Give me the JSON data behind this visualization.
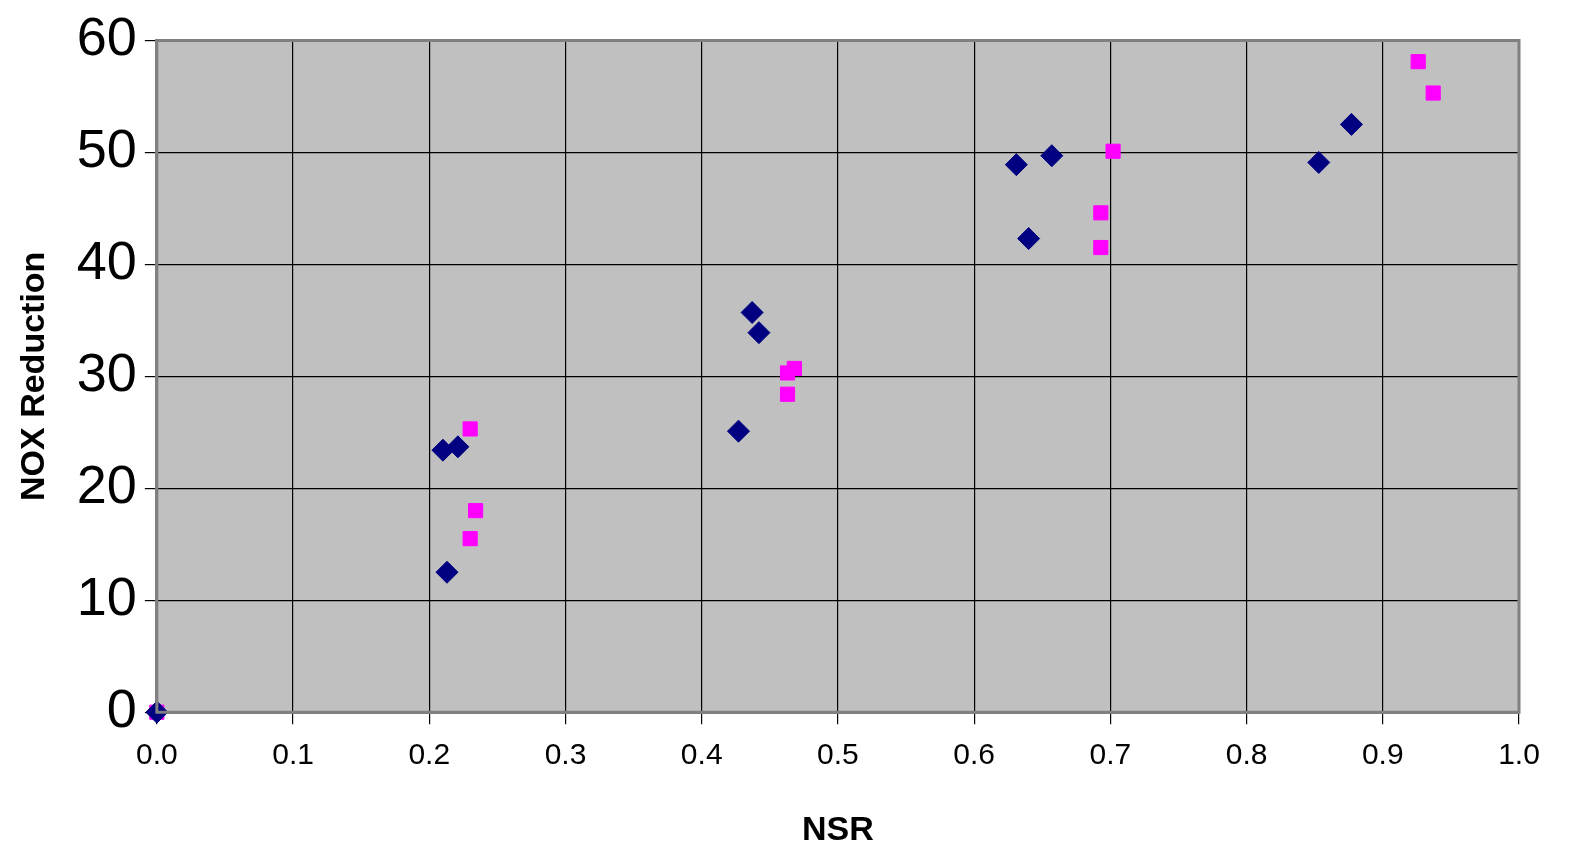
{
  "chart_data": {
    "type": "scatter",
    "xlabel": "NSR",
    "ylabel": "NOX Reduction",
    "xlim": [
      0,
      1
    ],
    "xticks": [
      {
        "value": 0,
        "label": "0.0"
      },
      {
        "value": 0.1,
        "label": "0.1"
      },
      {
        "value": 0.2,
        "label": "0.2"
      },
      {
        "value": 0.3,
        "label": "0.3"
      },
      {
        "value": 0.4,
        "label": "0.4"
      },
      {
        "value": 0.5,
        "label": "0.5"
      },
      {
        "value": 0.6,
        "label": "0.6"
      },
      {
        "value": 0.7,
        "label": "0.7"
      },
      {
        "value": 0.8,
        "label": "0.8"
      },
      {
        "value": 0.9,
        "label": "0.9"
      },
      {
        "value": 1,
        "label": "1.0"
      }
    ],
    "ylim": [
      0,
      60
    ],
    "yticks": [
      0,
      10,
      20,
      30,
      40,
      50,
      60
    ],
    "grid": true,
    "legend": false,
    "series": [
      {
        "color": "#000080",
        "marker": "diamond",
        "x": [
          0,
          0.21,
          0.221,
          0.213,
          0.427,
          0.437,
          0.442,
          0.631,
          0.657,
          0.64,
          0.853,
          0.877
        ],
        "values": [
          0,
          23.4,
          23.7,
          12.5,
          25.1,
          35.7,
          33.9,
          48.9,
          49.7,
          42.3,
          49.1,
          52.5
        ]
      },
      {
        "color": "#ff00ff",
        "marker": "square",
        "x": [
          0,
          0.23,
          0.234,
          0.23,
          0.463,
          0.468,
          0.463,
          0.702,
          0.693,
          0.693,
          0.926,
          0.937
        ],
        "values": [
          0,
          25.3,
          18,
          15.5,
          30.3,
          30.7,
          28.4,
          50.1,
          44.6,
          41.5,
          58.1,
          55.3
        ]
      }
    ]
  }
}
